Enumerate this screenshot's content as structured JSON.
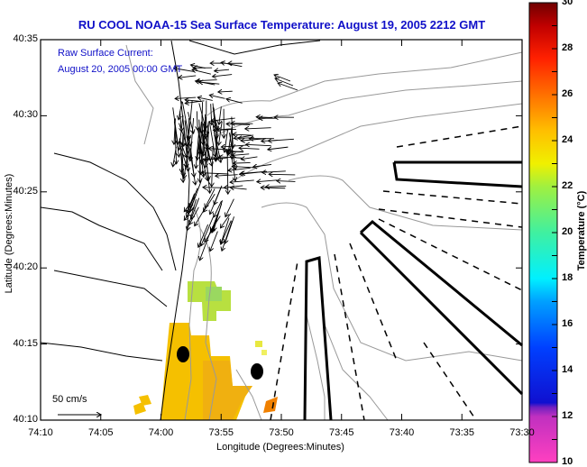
{
  "title": "RU COOL  NOAA-15  Sea Surface Temperature:  August 19, 2005 2212 GMT",
  "current_label": "Raw Surface Current:",
  "current_time": "August 20, 2005 00:00 GMT",
  "scale_label": "50 cm/s",
  "chart_data": {
    "type": "heatmap",
    "xlabel": "Longitude (Degrees:Minutes)",
    "ylabel": "Latitude (Degrees:Minutes)",
    "x_ticks": [
      "74:10",
      "74:05",
      "74:00",
      "73:55",
      "73:50",
      "73:45",
      "73:40",
      "73:35",
      "73:30"
    ],
    "y_ticks": [
      "40:35",
      "40:30",
      "40:25",
      "40:20",
      "40:15",
      "40:10"
    ],
    "colorbar": {
      "label": "Temperature (°C)",
      "range": [
        10,
        30
      ],
      "ticks": [
        "30",
        "28",
        "26",
        "24",
        "22",
        "20",
        "18",
        "16",
        "14",
        "12",
        "10"
      ]
    },
    "sst_observed_range_c": [
      21,
      25
    ]
  }
}
